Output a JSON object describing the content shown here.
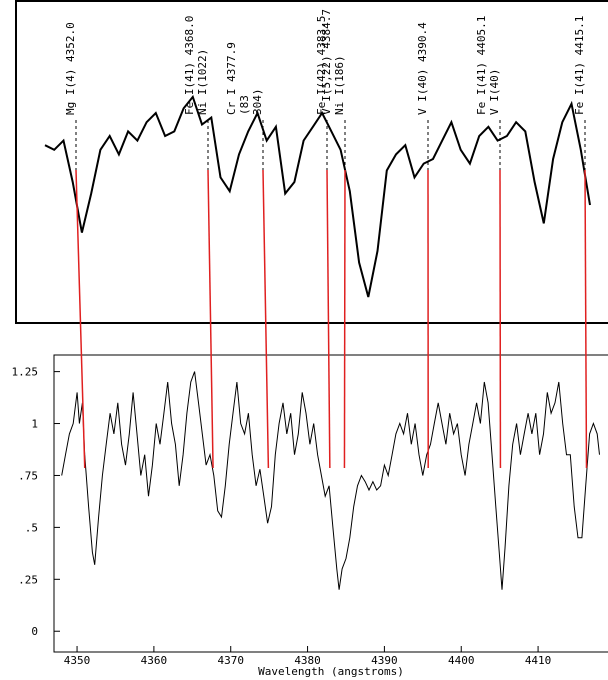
{
  "chart_data": [
    {
      "type": "line-with-labels",
      "values": [
        0.76,
        0.74,
        0.78,
        0.6,
        0.38,
        0.55,
        0.74,
        0.8,
        0.72,
        0.82,
        0.78,
        0.86,
        0.9,
        0.8,
        0.82,
        0.92,
        0.97,
        0.85,
        0.88,
        0.62,
        0.56,
        0.72,
        0.82,
        0.9,
        0.78,
        0.84,
        0.55,
        0.6,
        0.78,
        0.84,
        0.9,
        0.82,
        0.74,
        0.56,
        0.25,
        0.1,
        0.3,
        0.65,
        0.72,
        0.76,
        0.62,
        0.68,
        0.7,
        0.78,
        0.86,
        0.74,
        0.68,
        0.8,
        0.84,
        0.78,
        0.8,
        0.86,
        0.82,
        0.6,
        0.42,
        0.7,
        0.86,
        0.94,
        0.74,
        0.5
      ],
      "color": "#000000",
      "matches": [
        {
          "labels": [
            "Mg I(4) 4352.0"
          ],
          "x": 4351.0
        },
        {
          "labels": [
            "Fe I(41) 4368.0",
            "Ni I(1022)"
          ],
          "x": 4367.7
        },
        {
          "labels": [
            "Cr I 4377.9",
            "(83",
            "304)"
          ],
          "x": 4374.9
        },
        {
          "labels": [
            "Fe I(42) 4383.5"
          ],
          "x": 4382.9
        },
        {
          "labels": [
            "V I(5,22) 4384.7",
            "Ni I(186)"
          ],
          "x": 4384.8
        },
        {
          "labels": [
            "V I(40) 4390.4"
          ],
          "x": 4395.7
        },
        {
          "labels": [
            "Fe I(41) 4405.1",
            "V I(40)"
          ],
          "x": 4405.1
        },
        {
          "labels": [
            "Fe I(41) 4415.1"
          ],
          "x": 4416.3
        }
      ],
      "match_color": "#e02020"
    },
    {
      "type": "line",
      "xlabel": "Wavelength (angstroms)",
      "x": [
        4348,
        4348.5,
        4349,
        4349.5,
        4350,
        4350.3,
        4350.7,
        4351,
        4351.5,
        4352,
        4352.3,
        4352.8,
        4353.3,
        4353.8,
        4354.3,
        4354.8,
        4355.3,
        4355.8,
        4356.3,
        4356.8,
        4357.3,
        4357.8,
        4358.3,
        4358.8,
        4359.3,
        4359.8,
        4360.3,
        4360.8,
        4361.3,
        4361.8,
        4362.3,
        4362.8,
        4363.3,
        4363.8,
        4364.3,
        4364.8,
        4365.3,
        4365.8,
        4366.3,
        4366.8,
        4367.3,
        4367.8,
        4368.3,
        4368.8,
        4369.3,
        4369.8,
        4370.3,
        4370.8,
        4371.3,
        4371.8,
        4372.3,
        4372.8,
        4373.3,
        4373.8,
        4374.3,
        4374.8,
        4375.3,
        4375.8,
        4376.3,
        4376.8,
        4377.3,
        4377.8,
        4378.3,
        4378.8,
        4379.3,
        4379.8,
        4380.3,
        4380.8,
        4381.3,
        4381.8,
        4382.3,
        4382.8,
        4383.3,
        4383.8,
        4384.1,
        4384.5,
        4385,
        4385.5,
        4386,
        4386.5,
        4387,
        4387.5,
        4388,
        4388.5,
        4389,
        4389.5,
        4390,
        4390.5,
        4391,
        4391.5,
        4392,
        4392.5,
        4393,
        4393.5,
        4394,
        4394.5,
        4395,
        4395.5,
        4396,
        4396.5,
        4397,
        4397.5,
        4398,
        4398.5,
        4399,
        4399.5,
        4400,
        4400.5,
        4401,
        4401.5,
        4402,
        4402.5,
        4403,
        4403.5,
        4404,
        4404.5,
        4405,
        4405.3,
        4405.7,
        4406.2,
        4406.7,
        4407.2,
        4407.7,
        4408.2,
        4408.7,
        4409.2,
        4409.7,
        4410.2,
        4410.7,
        4411.2,
        4411.7,
        4412.2,
        4412.7,
        4413.2,
        4413.7,
        4414.2,
        4414.7,
        4415.2,
        4415.7,
        4416.2,
        4416.7,
        4417.2,
        4417.7,
        4418
      ],
      "values": [
        0.75,
        0.85,
        0.95,
        1.0,
        1.15,
        1.0,
        1.1,
        0.85,
        0.6,
        0.38,
        0.32,
        0.55,
        0.75,
        0.9,
        1.05,
        0.95,
        1.1,
        0.9,
        0.8,
        0.95,
        1.15,
        0.95,
        0.75,
        0.85,
        0.65,
        0.8,
        1.0,
        0.9,
        1.05,
        1.2,
        1.0,
        0.9,
        0.7,
        0.85,
        1.05,
        1.2,
        1.25,
        1.1,
        0.95,
        0.8,
        0.85,
        0.75,
        0.58,
        0.55,
        0.7,
        0.9,
        1.05,
        1.2,
        1.0,
        0.95,
        1.05,
        0.85,
        0.7,
        0.78,
        0.65,
        0.52,
        0.6,
        0.85,
        1.0,
        1.1,
        0.95,
        1.05,
        0.85,
        0.95,
        1.15,
        1.05,
        0.9,
        1.0,
        0.85,
        0.75,
        0.65,
        0.7,
        0.5,
        0.3,
        0.2,
        0.3,
        0.35,
        0.45,
        0.6,
        0.7,
        0.75,
        0.72,
        0.68,
        0.72,
        0.68,
        0.7,
        0.8,
        0.75,
        0.85,
        0.95,
        1.0,
        0.95,
        1.05,
        0.9,
        1.0,
        0.85,
        0.75,
        0.85,
        0.9,
        1.0,
        1.1,
        1.0,
        0.9,
        1.05,
        0.95,
        1.0,
        0.85,
        0.75,
        0.9,
        1.0,
        1.1,
        1.0,
        1.2,
        1.1,
        0.85,
        0.6,
        0.35,
        0.2,
        0.4,
        0.7,
        0.9,
        1.0,
        0.85,
        0.95,
        1.05,
        0.95,
        1.05,
        0.85,
        0.95,
        1.15,
        1.05,
        1.1,
        1.2,
        1.0,
        0.85,
        0.85,
        0.6,
        0.45,
        0.45,
        0.7,
        0.95,
        1.0,
        0.95,
        0.85
      ],
      "color": "#000000",
      "xlim": [
        4347,
        4419.1
      ],
      "xticks": [
        4350,
        4360,
        4370,
        4380,
        4390,
        4400,
        4410
      ],
      "ylim": [
        -0.1,
        1.33
      ],
      "yticks": [
        0,
        {
          "value": 0.25,
          "label": ".25"
        },
        {
          "value": 0.5,
          "label": ".5"
        },
        {
          "value": 0.75,
          "label": ".75"
        },
        1,
        1.25
      ]
    }
  ]
}
